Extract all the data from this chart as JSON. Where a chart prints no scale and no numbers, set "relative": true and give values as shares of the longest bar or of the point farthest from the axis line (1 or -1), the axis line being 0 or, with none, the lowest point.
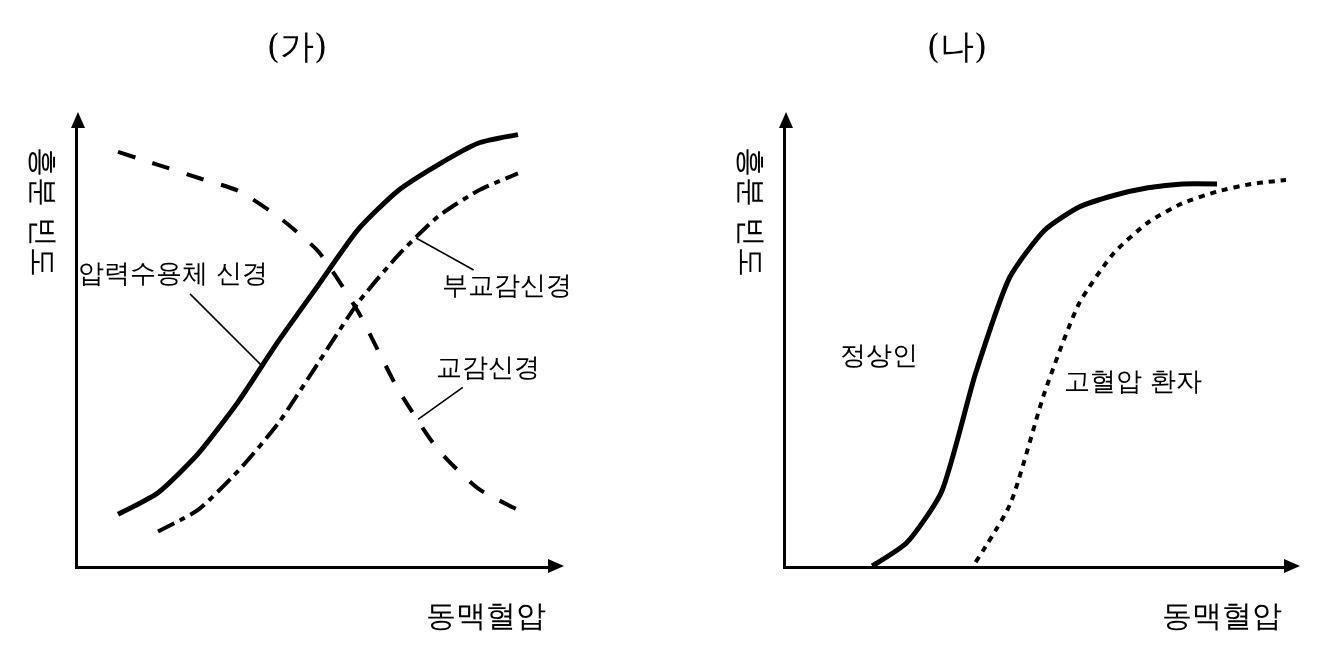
{
  "chart_data": [
    {
      "type": "line",
      "title": "(가)",
      "xlabel": "동맥혈압",
      "ylabel": "흥분 빈도",
      "relative": true,
      "categories": [
        null,
        null,
        null,
        null,
        null,
        null,
        null,
        null,
        null,
        null,
        null
      ],
      "series": [
        {
          "name": "압력수용체 신경",
          "color": "#000000",
          "line_style": "solid",
          "values": [
            0.12,
            0.17,
            0.26,
            0.38,
            0.52,
            0.65,
            0.78,
            0.87,
            0.93,
            0.98,
            1.0
          ]
        },
        {
          "name": "부교감신경",
          "color": "#000000",
          "line_style": "dashdot",
          "values": [
            null,
            0.08,
            0.13,
            0.22,
            0.33,
            0.47,
            0.61,
            0.72,
            0.81,
            0.87,
            0.91
          ]
        },
        {
          "name": "교감신경",
          "color": "#000000",
          "line_style": "dashed",
          "values": [
            0.96,
            0.93,
            0.9,
            0.87,
            0.81,
            0.73,
            0.59,
            0.41,
            0.27,
            0.18,
            0.13
          ]
        }
      ]
    },
    {
      "type": "line",
      "title": "(나)",
      "xlabel": "동맥혈압",
      "ylabel": "흥분 빈도",
      "relative": true,
      "categories": [
        null,
        null,
        null,
        null,
        null,
        null,
        null,
        null,
        null,
        null,
        null,
        null,
        null
      ],
      "series": [
        {
          "name": "정상인",
          "color": "#000000",
          "line_style": "solid",
          "values": [
            0,
            0.06,
            0.19,
            0.5,
            0.75,
            0.87,
            0.93,
            0.96,
            0.98,
            0.99,
            0.99,
            null,
            null
          ]
        },
        {
          "name": "고혈압 환자",
          "color": "#000000",
          "line_style": "dotted",
          "values": [
            null,
            null,
            null,
            0.01,
            0.16,
            0.45,
            0.68,
            0.81,
            0.89,
            0.94,
            0.97,
            0.99,
            1.0
          ]
        }
      ]
    }
  ]
}
